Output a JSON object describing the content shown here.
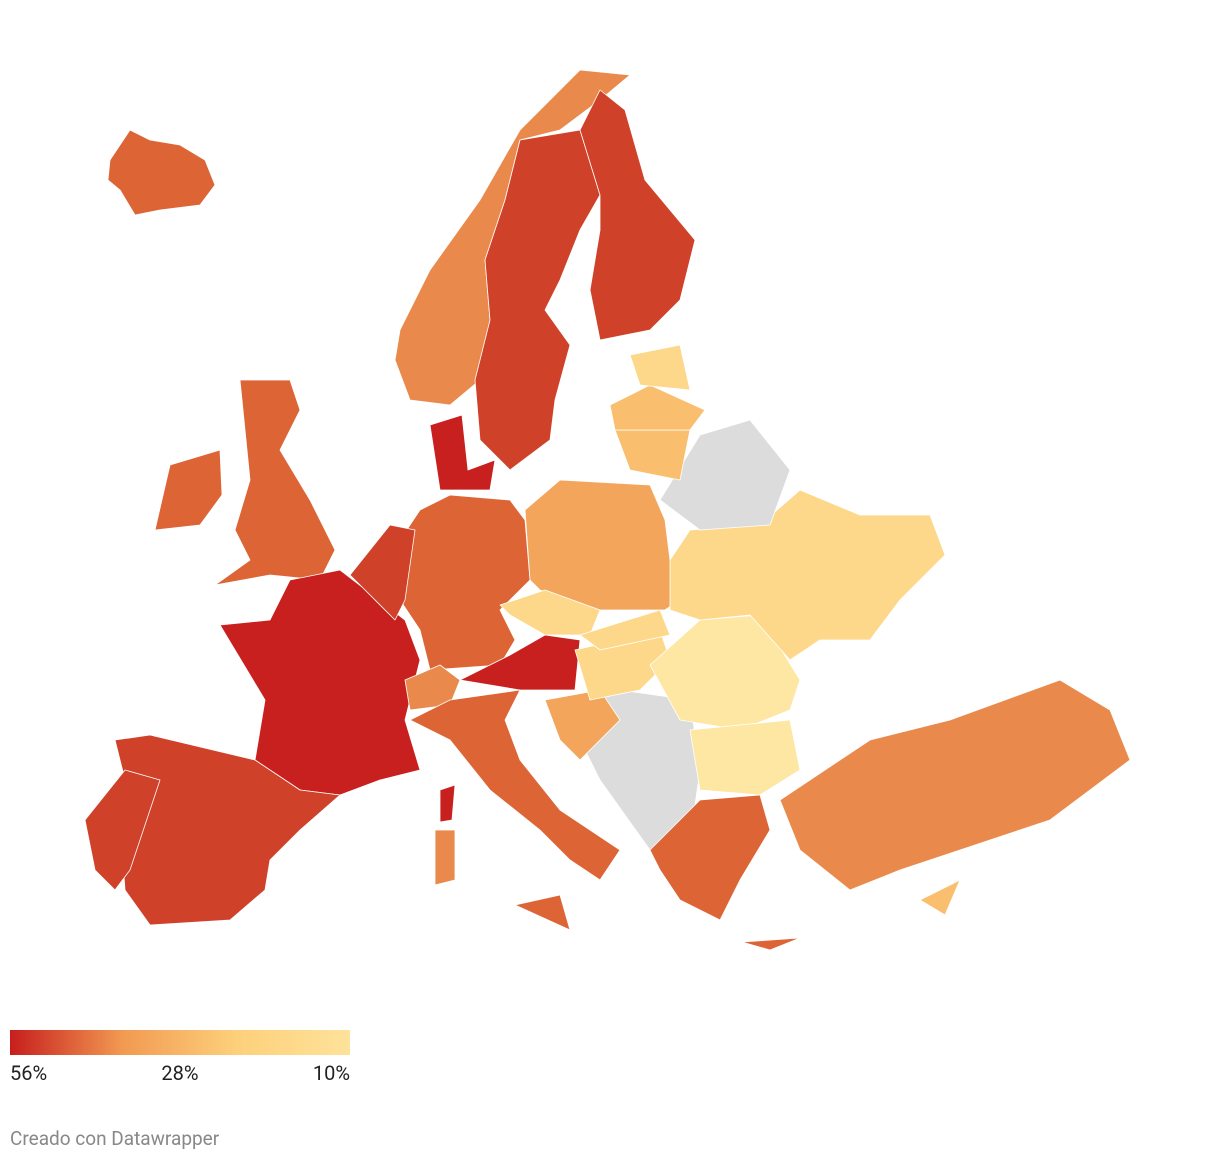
{
  "legend": {
    "ticks": [
      {
        "value": 56,
        "label": "56%"
      },
      {
        "value": 28,
        "label": "28%"
      },
      {
        "value": 10,
        "label": "10%"
      }
    ],
    "colors": [
      "#c71e1d",
      "#f29a52",
      "#fdd07b",
      "#fee29a"
    ]
  },
  "footer": "Creado con Datawrapper"
}
